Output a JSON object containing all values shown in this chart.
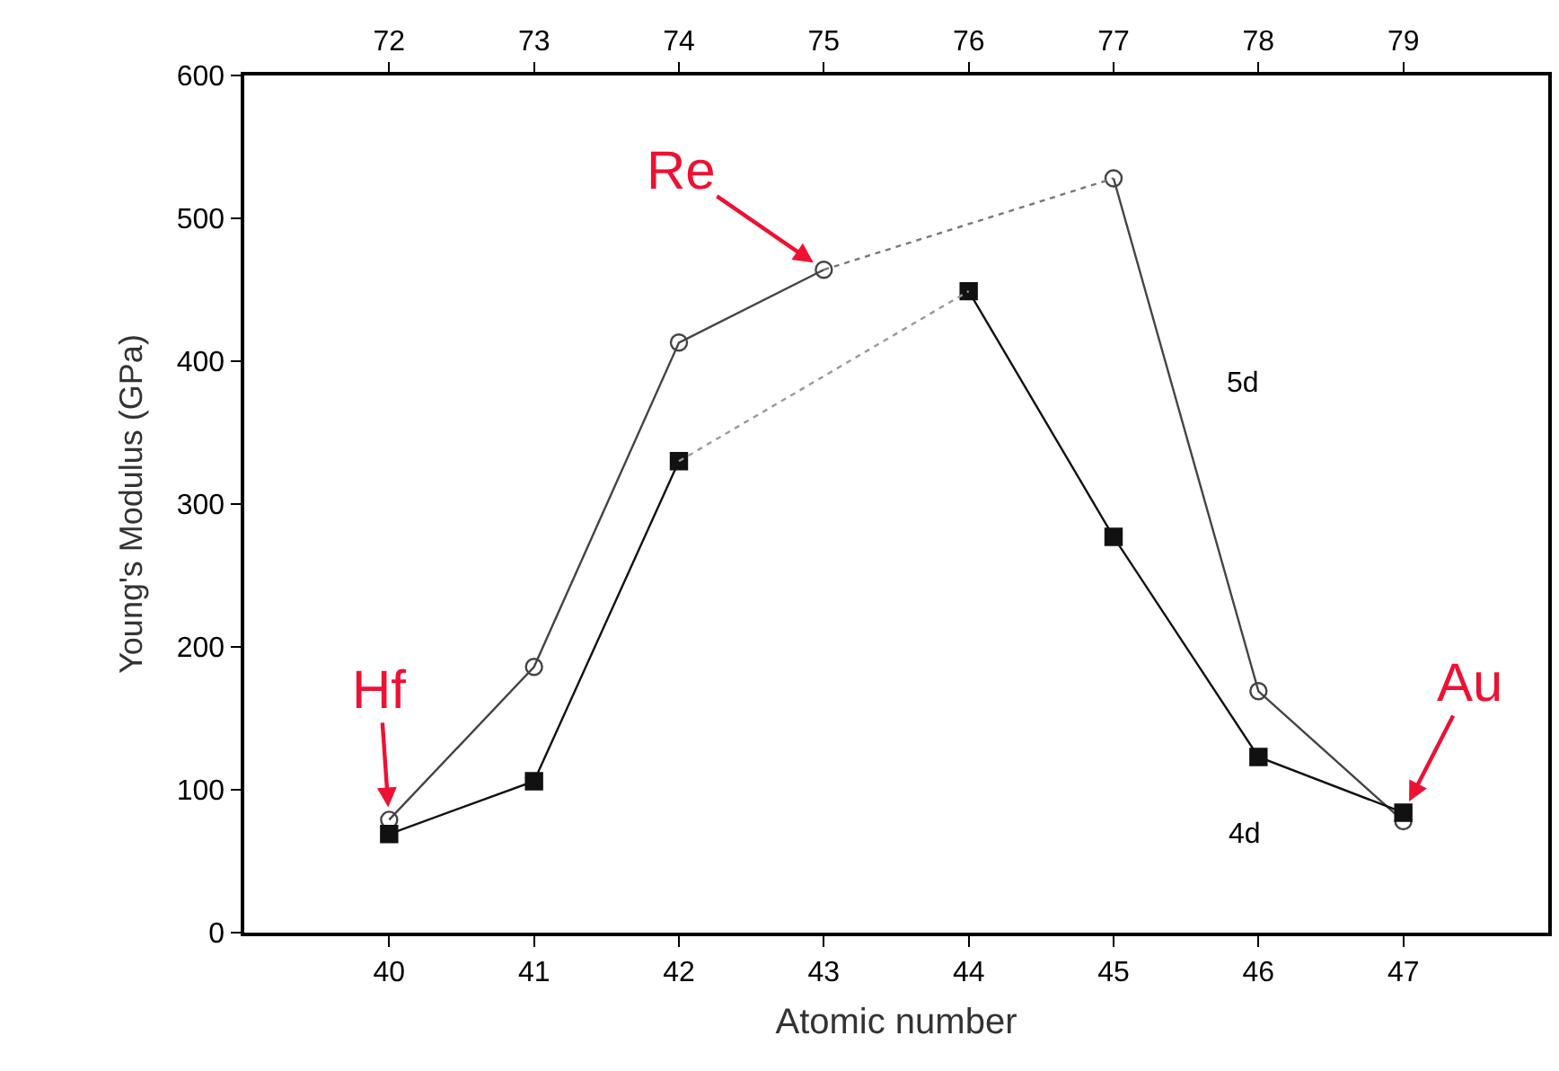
{
  "chart_data": {
    "type": "line",
    "xlabel": "Atomic number",
    "ylabel": "Young's Modulus (GPa)",
    "xlim": [
      39,
      48
    ],
    "xticks": [
      40,
      41,
      42,
      43,
      44,
      45,
      46,
      47
    ],
    "x2lim": [
      71,
      80
    ],
    "x2ticks": [
      72,
      73,
      74,
      75,
      76,
      77,
      78,
      79
    ],
    "ylim": [
      0,
      600
    ],
    "yticks": [
      0,
      100,
      200,
      300,
      400,
      500,
      600
    ],
    "grid": false,
    "legend": false,
    "series": [
      {
        "name": "5d",
        "color": "#444444",
        "marker": "circle",
        "line_style": "solid",
        "x": [
          40,
          41,
          42,
          43,
          44,
          45,
          46,
          47
        ],
        "values": [
          79,
          186,
          413,
          464,
          null,
          528,
          169,
          78
        ]
      },
      {
        "color": "#777777",
        "marker": "none",
        "line_style": "dotted",
        "x": [
          43,
          45
        ],
        "values": [
          464,
          528
        ]
      },
      {
        "name": "4d",
        "color": "#111111",
        "marker": "square",
        "line_style": "solid",
        "x": [
          40,
          41,
          42,
          43,
          44,
          45,
          46,
          47
        ],
        "values": [
          69,
          106,
          330,
          null,
          449,
          277,
          123,
          84
        ]
      },
      {
        "color": "#999999",
        "marker": "none",
        "line_style": "dotted",
        "x": [
          42,
          44
        ],
        "values": [
          330,
          449
        ]
      }
    ],
    "annotations": [
      {
        "text": "Hf",
        "x": 40,
        "y": 79
      },
      {
        "text": "Re",
        "x": 43,
        "y": 464
      },
      {
        "text": "Au",
        "x": 47,
        "y": 84
      }
    ]
  }
}
